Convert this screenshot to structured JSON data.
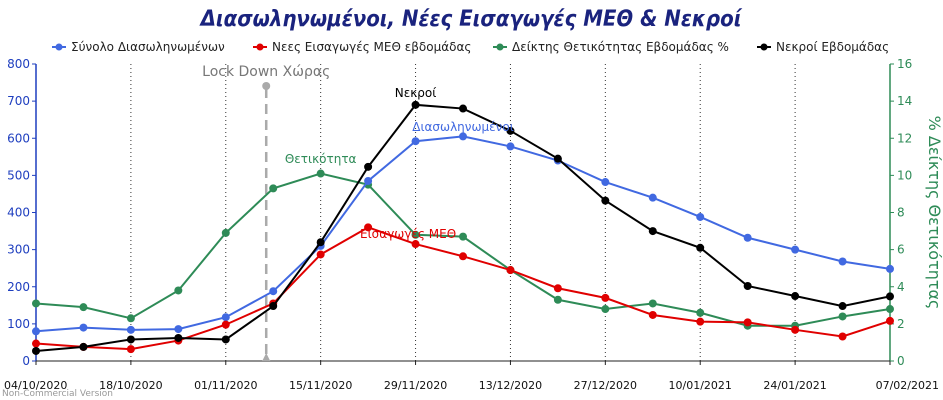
{
  "chart_data": {
    "type": "line",
    "title": "Διασωληνωμένοι, Νέες Εισαγωγές ΜΕΘ & Νεκροί",
    "x": [
      "04/10/2020",
      "11/10/2020",
      "18/10/2020",
      "25/10/2020",
      "01/11/2020",
      "08/11/2020",
      "15/11/2020",
      "22/11/2020",
      "29/11/2020",
      "06/12/2020",
      "13/12/2020",
      "20/12/2020",
      "27/12/2020",
      "03/01/2021",
      "10/01/2021",
      "17/01/2021",
      "24/01/2021",
      "31/01/2021",
      "07/02/2021"
    ],
    "x_tick_labels": [
      "04/10/2020",
      "18/10/2020",
      "01/11/2020",
      "15/11/2020",
      "29/11/2020",
      "13/12/2020",
      "27/12/2020",
      "10/01/2021",
      "24/01/2021",
      "07/02/2021"
    ],
    "y_left": {
      "ylim": [
        0,
        800
      ],
      "ticks": [
        "0",
        "100",
        "200",
        "300",
        "400",
        "500",
        "600",
        "700",
        "800"
      ]
    },
    "y_right": {
      "label": "% Δείκτης Θετικότητας",
      "ylim": [
        0,
        16
      ],
      "ticks": [
        "0",
        "2",
        "4",
        "6",
        "8",
        "10",
        "12",
        "14",
        "16"
      ]
    },
    "grid": "vertical-dotted",
    "legend_position": "top",
    "series": [
      {
        "name": "Σύνολο Διασωληνωμένων",
        "color": "#4169e1",
        "axis": "left",
        "values": [
          80,
          90,
          84,
          86,
          118,
          188,
          310,
          485,
          592,
          605,
          578,
          540,
          482,
          440,
          388,
          332,
          300,
          268,
          248
        ]
      },
      {
        "name": "Νεες Εισαγωγές ΜΕΘ εβδομάδας",
        "color": "#e00000",
        "axis": "left",
        "values": [
          47,
          38,
          32,
          55,
          98,
          155,
          287,
          360,
          315,
          282,
          245,
          196,
          170,
          124,
          106,
          104,
          84,
          66,
          108
        ]
      },
      {
        "name": "Δείκτης Θετικότητας Εβδομάδας %",
        "color": "#2e8b57",
        "axis": "right",
        "values": [
          3.1,
          2.9,
          2.3,
          3.8,
          6.9,
          9.3,
          10.1,
          9.5,
          6.8,
          6.7,
          4.9,
          3.3,
          2.8,
          3.1,
          2.6,
          1.9,
          1.9,
          2.4,
          2.8
        ]
      },
      {
        "name": "Νεκροί Εβδομάδας",
        "color": "#000000",
        "axis": "left",
        "values": [
          27,
          38,
          58,
          62,
          58,
          148,
          320,
          523,
          690,
          680,
          620,
          545,
          432,
          350,
          305,
          202,
          175,
          148,
          174
        ]
      }
    ],
    "annotations": {
      "lockdown": "Lock Down Χώρας",
      "deaths": "Νεκροί",
      "intubated": "Διασωληνωμένοι",
      "positivity": "Θετικότητα",
      "icu": "Εισαγωγές ΜΕΘ"
    }
  },
  "watermark": "Non-Commercial Version"
}
